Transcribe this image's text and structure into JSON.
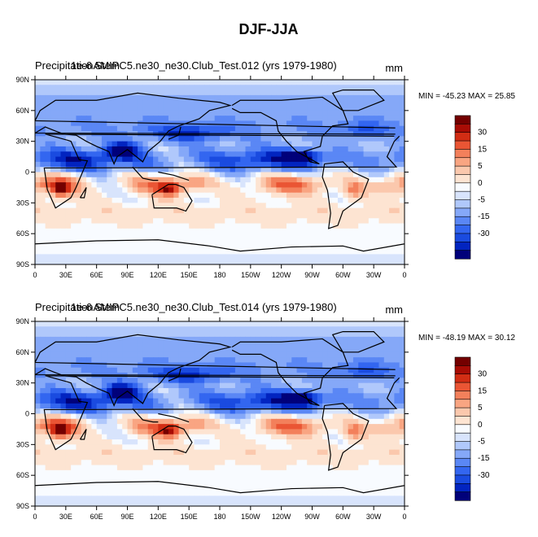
{
  "figure": {
    "title": "DJF-JJA"
  },
  "chart_data": [
    {
      "type": "heatmap",
      "panel_title_left": "PrecipitationAMIPC5.ne30_ne30.Club_Test.012 (yrs 1979-1980)",
      "overlay_text": "1e-6 Stem",
      "units": "mm",
      "stats": "MIN = -45.23 MAX =  25.85",
      "variable": "precipitation difference DJF minus JJA",
      "xaxis": {
        "range": [
          0,
          360
        ],
        "ticks": [
          "0",
          "30E",
          "60E",
          "90E",
          "120E",
          "150E",
          "180",
          "150W",
          "120W",
          "90W",
          "60W",
          "30W",
          "0"
        ]
      },
      "yaxis": {
        "range": [
          -90,
          90
        ],
        "ticks": [
          "90N",
          "60N",
          "30N",
          "0",
          "30S",
          "60S",
          "90S"
        ]
      },
      "colorbar": {
        "labels": [
          "30",
          "15",
          "5",
          "0",
          "-5",
          "-15",
          "-30"
        ]
      },
      "basemap": "world coastlines, equidistant cylindrical, centered on 180"
    },
    {
      "type": "heatmap",
      "panel_title_left": "PrecipitationAMIPC5.ne30_ne30.Club_Test.014 (yrs 1979-1980)",
      "overlay_text": "1e-6 Stem",
      "units": "mm",
      "stats": "MIN = -48.19 MAX =  30.12",
      "variable": "precipitation difference DJF minus JJA",
      "xaxis": {
        "range": [
          0,
          360
        ],
        "ticks": [
          "0",
          "30E",
          "60E",
          "90E",
          "120E",
          "150E",
          "180",
          "150W",
          "120W",
          "90W",
          "60W",
          "30W",
          "0"
        ]
      },
      "yaxis": {
        "range": [
          -90,
          90
        ],
        "ticks": [
          "90N",
          "60N",
          "30N",
          "0",
          "30S",
          "60S",
          "90S"
        ]
      },
      "colorbar": {
        "labels": [
          "30",
          "15",
          "5",
          "0",
          "-5",
          "-15",
          "-30"
        ]
      },
      "basemap": "world coastlines, equidistant cylindrical, centered on 180"
    }
  ],
  "palette": [
    "#01017a",
    "#0224c0",
    "#1a4be0",
    "#3366f0",
    "#5a87f5",
    "#85a8f8",
    "#b0c8fb",
    "#d8e4fc",
    "#f8fbff",
    "#fde4d2",
    "#fbc8ad",
    "#f9a582",
    "#f3805b",
    "#ea5534",
    "#d22d14",
    "#a80c05",
    "#740000"
  ]
}
